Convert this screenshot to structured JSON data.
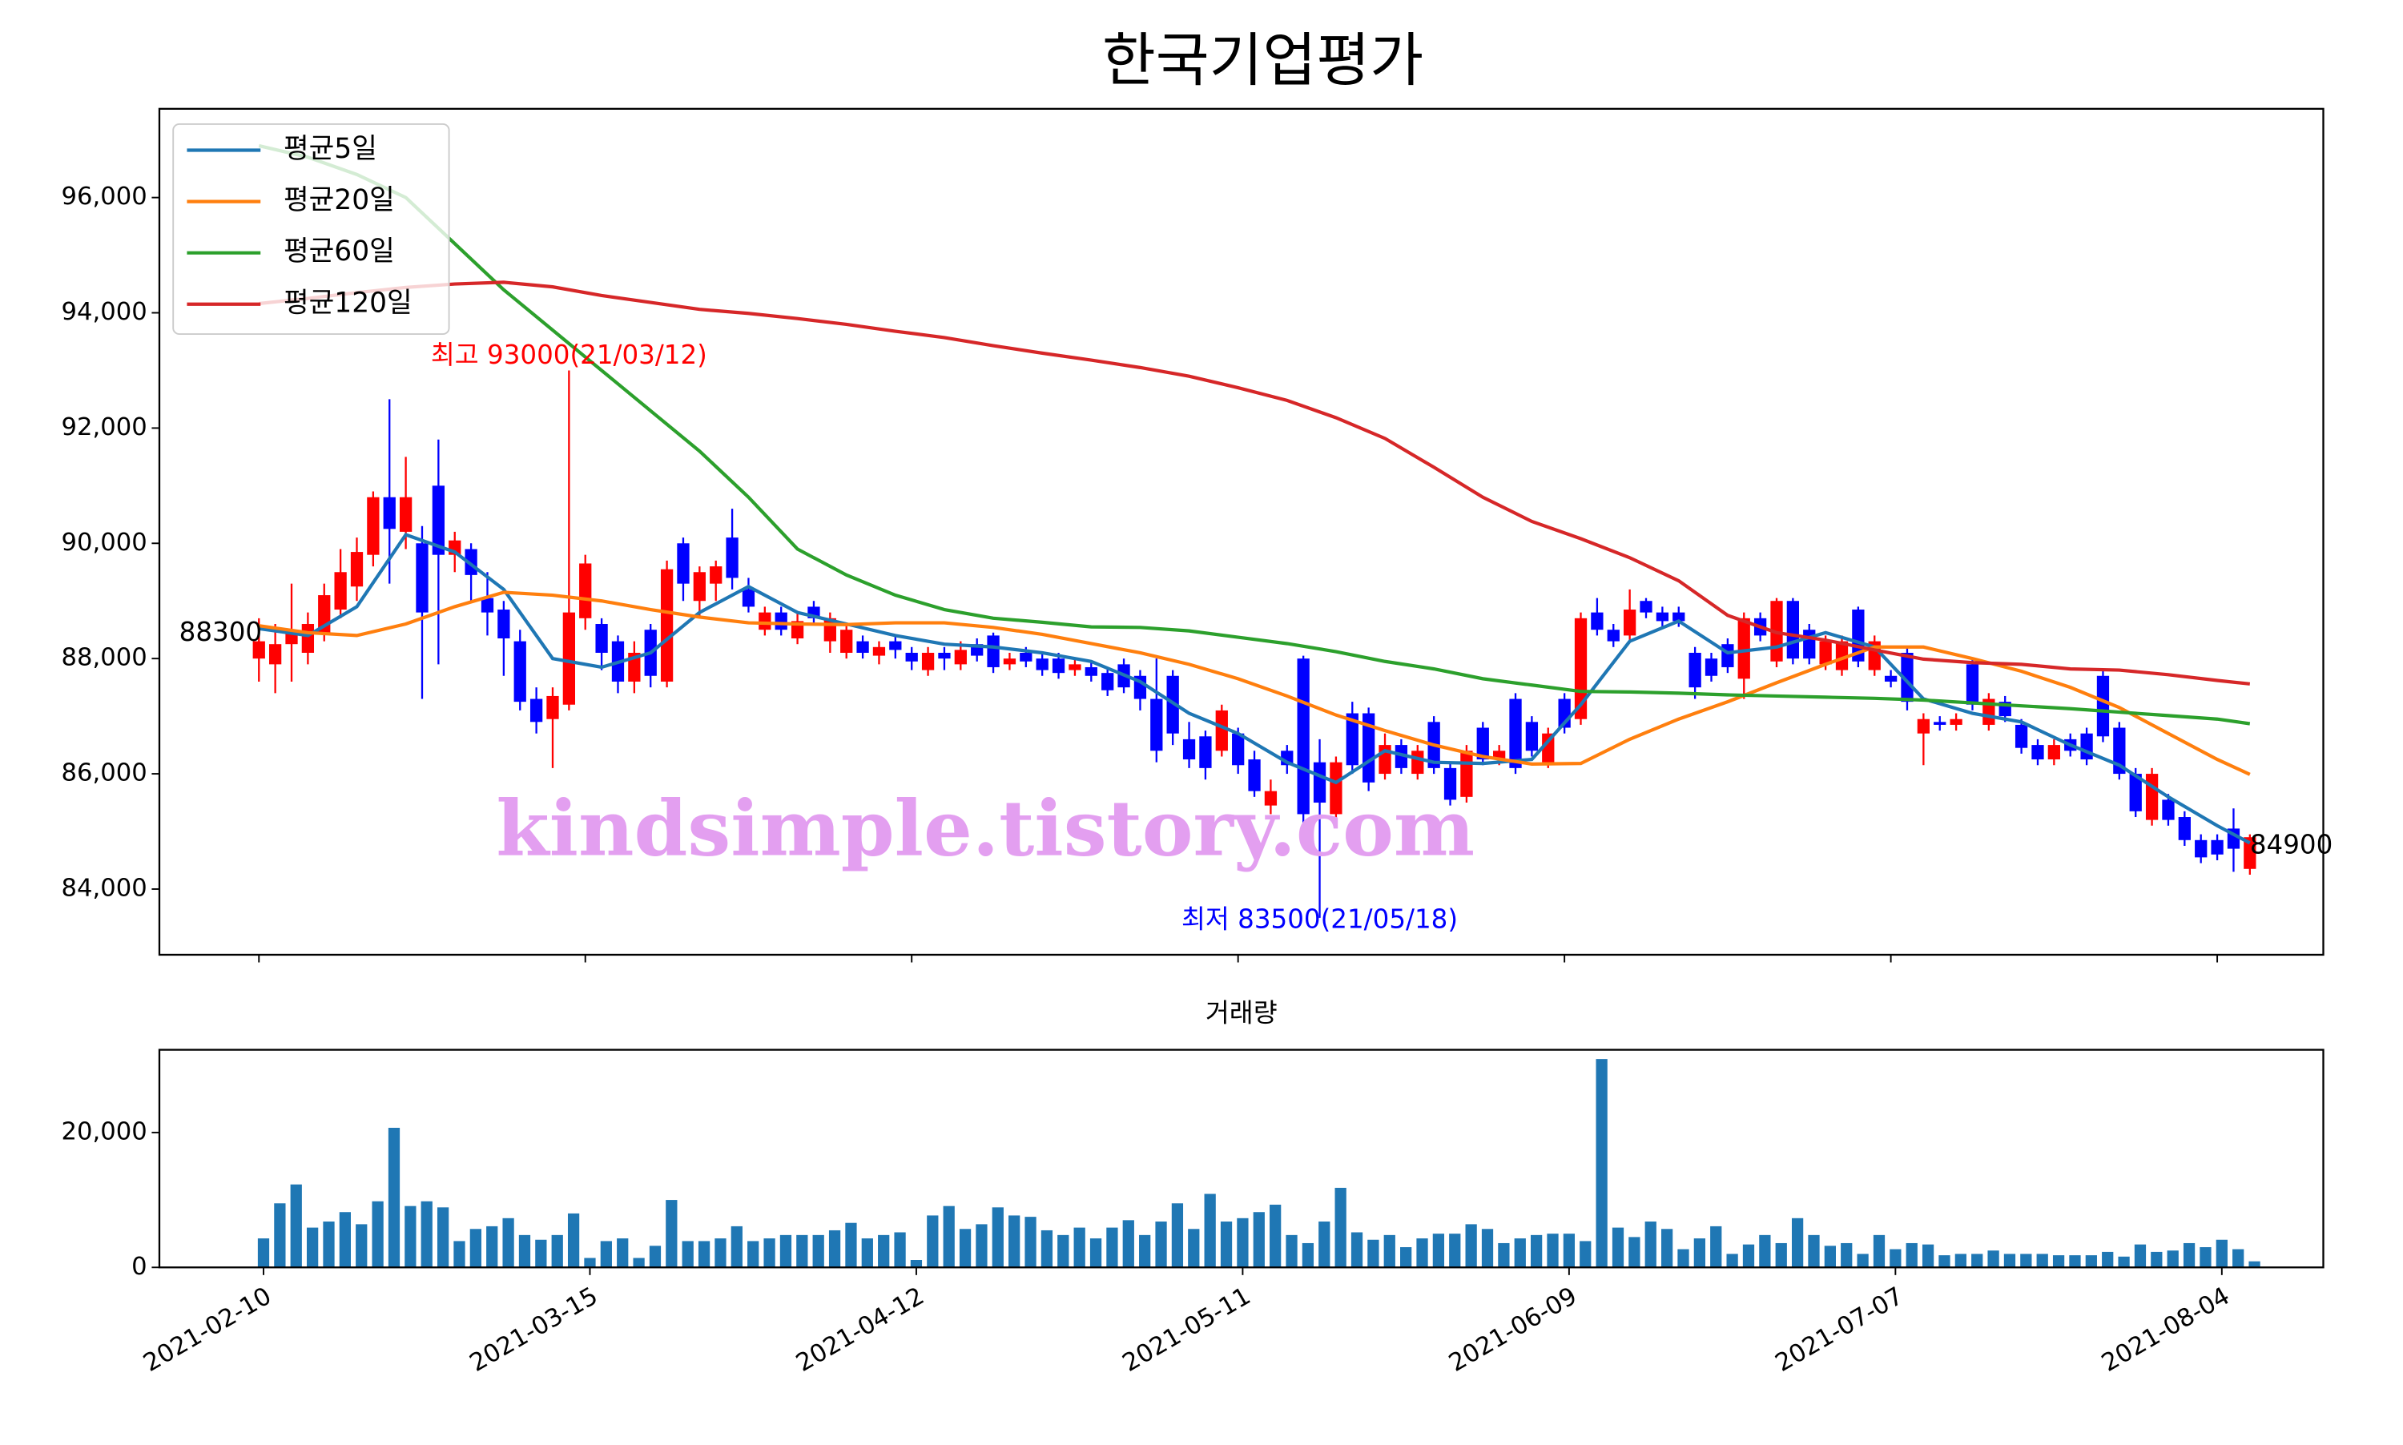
{
  "chart_data": [
    {
      "type": "candlestick",
      "title": "한국기업평가",
      "open": [
        88000,
        87900,
        88250,
        88100,
        88450,
        88850,
        89250,
        89800,
        90800,
        90200,
        90000,
        91000,
        89800,
        89900,
        89050,
        88850,
        88300,
        87300,
        86950,
        87200,
        88700,
        88600,
        88300,
        87600,
        88500,
        87600,
        90000,
        89000,
        89300,
        90100,
        89200,
        88500,
        88800,
        88350,
        88900,
        88300,
        88100,
        88300,
        88050,
        88300,
        88100,
        87800,
        88100,
        87900,
        88250,
        88400,
        87900,
        88100,
        88000,
        88000,
        87800,
        87850,
        87750,
        87900,
        87700,
        87300,
        87700,
        86600,
        86650,
        86400,
        86700,
        86250,
        85450,
        86400,
        88000,
        86200,
        85300,
        87050,
        87050,
        86000,
        86500,
        86000,
        86900,
        86100,
        85600,
        86800,
        86250,
        87300,
        86900,
        86200,
        87300,
        86950,
        88800,
        88500,
        88400,
        89000,
        88800,
        88800,
        88100,
        88000,
        88250,
        87650,
        88700,
        87950,
        89000,
        88500,
        87900,
        87800,
        88850,
        87800,
        87700,
        88100,
        86700,
        86900,
        86850,
        87900,
        86850,
        87250,
        86850,
        86500,
        86250,
        86600,
        86700,
        87700,
        86800,
        86000,
        85200,
        85550,
        85250,
        84850,
        84850,
        85050,
        84350
      ],
      "high": [
        88700,
        88600,
        89300,
        88800,
        89300,
        89900,
        90100,
        90900,
        92500,
        91500,
        90300,
        91800,
        90200,
        90000,
        89500,
        89000,
        88500,
        87500,
        87500,
        93000,
        89800,
        88700,
        88400,
        88300,
        88600,
        89700,
        90100,
        89600,
        89700,
        90600,
        89400,
        88900,
        88900,
        88800,
        89000,
        88800,
        88600,
        88400,
        88300,
        88400,
        88200,
        88200,
        88200,
        88300,
        88350,
        88450,
        88100,
        88200,
        88100,
        88100,
        88000,
        87950,
        87850,
        88000,
        87800,
        88000,
        87800,
        86900,
        86750,
        87200,
        86800,
        86400,
        85900,
        86500,
        88050,
        86600,
        86300,
        87250,
        87150,
        86700,
        86600,
        86500,
        87000,
        86200,
        86500,
        86900,
        86500,
        87400,
        87000,
        86800,
        87400,
        88800,
        89050,
        88600,
        89200,
        89050,
        88900,
        88900,
        88200,
        88100,
        88350,
        88800,
        88800,
        89050,
        89050,
        88600,
        88400,
        88400,
        88900,
        88400,
        87800,
        88200,
        87050,
        87000,
        87050,
        88000,
        87400,
        87350,
        86950,
        86600,
        86600,
        86700,
        86800,
        87800,
        86900,
        86100,
        86100,
        85650,
        85350,
        84950,
        84950,
        85400,
        84950
      ],
      "low": [
        87600,
        87400,
        87600,
        87900,
        88300,
        88700,
        89000,
        89600,
        89300,
        89900,
        87300,
        87900,
        89500,
        89000,
        88400,
        87700,
        87100,
        86700,
        86100,
        87100,
        88500,
        87800,
        87400,
        87400,
        87500,
        87500,
        89000,
        88700,
        89000,
        89200,
        88800,
        88400,
        88400,
        88250,
        88600,
        88100,
        88000,
        88000,
        87900,
        88000,
        87800,
        87700,
        87800,
        87800,
        87950,
        87750,
        87800,
        87850,
        87700,
        87650,
        87700,
        87600,
        87350,
        87400,
        87100,
        86200,
        86500,
        86100,
        85900,
        86300,
        86000,
        85600,
        85300,
        86000,
        85000,
        83500,
        85100,
        86000,
        85700,
        85900,
        86000,
        85900,
        86000,
        85450,
        85500,
        86150,
        86150,
        86000,
        86300,
        86100,
        86700,
        86850,
        88400,
        88200,
        88300,
        88700,
        88550,
        88550,
        87300,
        87600,
        87750,
        87300,
        88300,
        87850,
        87900,
        87900,
        87800,
        87700,
        87850,
        87700,
        87500,
        87100,
        86150,
        86750,
        86750,
        87100,
        86750,
        86900,
        86350,
        86150,
        86150,
        86300,
        86150,
        86550,
        85900,
        85250,
        85100,
        85100,
        84750,
        84450,
        84500,
        84300,
        84250
      ],
      "close": [
        88300,
        88250,
        88500,
        88600,
        89100,
        89500,
        89850,
        90800,
        90250,
        90800,
        88800,
        89800,
        90050,
        89450,
        88800,
        88350,
        87250,
        86900,
        87350,
        88800,
        89650,
        88100,
        87600,
        88100,
        87700,
        89550,
        89300,
        89500,
        89600,
        89400,
        88900,
        88800,
        88500,
        88650,
        88700,
        88700,
        88500,
        88100,
        88200,
        88150,
        87950,
        88100,
        88000,
        88150,
        88050,
        87850,
        88000,
        87950,
        87800,
        87750,
        87900,
        87700,
        87450,
        87500,
        87300,
        86400,
        86700,
        86250,
        86100,
        87100,
        86150,
        85700,
        85700,
        86150,
        85300,
        85500,
        86200,
        86150,
        85850,
        86500,
        86100,
        86400,
        86100,
        85550,
        86400,
        86250,
        86400,
        86100,
        86400,
        86700,
        86800,
        88700,
        88500,
        88300,
        88850,
        88800,
        88650,
        88650,
        87500,
        87700,
        87850,
        88700,
        88400,
        89000,
        88000,
        88000,
        88300,
        88300,
        87950,
        88300,
        87600,
        87250,
        86950,
        86850,
        86950,
        87200,
        87300,
        87000,
        86450,
        86250,
        86500,
        86400,
        86250,
        86650,
        86000,
        85350,
        86000,
        85200,
        84850,
        84550,
        84600,
        84700,
        84900
      ],
      "up_color": "#ff0000",
      "down_color": "#0000ff",
      "series": [
        {
          "name": "평균5일",
          "color": "#1f77b4",
          "x": [
            0,
            3,
            6,
            9,
            12,
            15,
            18,
            21,
            24,
            27,
            30,
            33,
            36,
            39,
            42,
            45,
            48,
            51,
            54,
            57,
            60,
            63,
            66,
            69,
            72,
            75,
            78,
            81,
            84,
            87,
            90,
            93,
            96,
            99,
            102,
            105,
            108,
            111,
            114,
            117,
            120,
            122
          ],
          "values": [
            88520,
            88400,
            88900,
            90150,
            89850,
            89200,
            88000,
            87850,
            88100,
            88800,
            89250,
            88800,
            88600,
            88400,
            88250,
            88200,
            88100,
            87950,
            87600,
            87050,
            86700,
            86200,
            85850,
            86400,
            86200,
            86180,
            86250,
            87200,
            88300,
            88650,
            88100,
            88200,
            88450,
            88200,
            87300,
            87050,
            86900,
            86500,
            86150,
            85600,
            85100,
            84800
          ]
        },
        {
          "name": "평균20일",
          "color": "#ff7f0e",
          "x": [
            0,
            3,
            6,
            9,
            12,
            15,
            18,
            21,
            24,
            27,
            30,
            33,
            36,
            39,
            42,
            45,
            48,
            51,
            54,
            57,
            60,
            63,
            66,
            69,
            72,
            75,
            78,
            81,
            84,
            87,
            90,
            93,
            96,
            99,
            102,
            105,
            108,
            111,
            114,
            117,
            120,
            122
          ],
          "values": [
            88570,
            88450,
            88400,
            88600,
            88900,
            89150,
            89100,
            89000,
            88850,
            88720,
            88620,
            88600,
            88590,
            88620,
            88620,
            88540,
            88420,
            88260,
            88100,
            87900,
            87650,
            87350,
            87020,
            86750,
            86500,
            86300,
            86170,
            86180,
            86600,
            86950,
            87250,
            87580,
            87900,
            88200,
            88200,
            88000,
            87780,
            87500,
            87150,
            86700,
            86250,
            85990
          ]
        },
        {
          "name": "평균60일",
          "color": "#2ca02c",
          "x": [
            0,
            3,
            6,
            9,
            12,
            15,
            18,
            21,
            24,
            27,
            30,
            33,
            36,
            39,
            42,
            45,
            48,
            51,
            54,
            57,
            60,
            63,
            66,
            69,
            72,
            75,
            78,
            81,
            84,
            87,
            90,
            93,
            96,
            99,
            102,
            105,
            108,
            111,
            114,
            117,
            120,
            122
          ],
          "values": [
            96900,
            96700,
            96400,
            96000,
            95200,
            94400,
            93700,
            93000,
            92300,
            91600,
            90800,
            89900,
            89450,
            89100,
            88850,
            88700,
            88630,
            88550,
            88540,
            88480,
            88370,
            88260,
            88120,
            87950,
            87820,
            87650,
            87540,
            87430,
            87420,
            87400,
            87370,
            87350,
            87330,
            87310,
            87280,
            87230,
            87180,
            87130,
            87070,
            87010,
            86950,
            86870
          ]
        },
        {
          "name": "평균120일",
          "color": "#d62728",
          "x": [
            0,
            3,
            6,
            9,
            12,
            15,
            18,
            21,
            24,
            27,
            30,
            33,
            36,
            39,
            42,
            45,
            48,
            51,
            54,
            57,
            60,
            63,
            66,
            69,
            72,
            75,
            78,
            81,
            84,
            87,
            90,
            93,
            96,
            99,
            102,
            105,
            108,
            111,
            114,
            117,
            120,
            122
          ],
          "values": [
            94160,
            94250,
            94350,
            94440,
            94500,
            94530,
            94450,
            94300,
            94180,
            94060,
            93990,
            93900,
            93800,
            93680,
            93570,
            93430,
            93300,
            93180,
            93050,
            92900,
            92700,
            92480,
            92180,
            91820,
            91320,
            90800,
            90380,
            90080,
            89750,
            89350,
            88750,
            88450,
            88320,
            88150,
            87990,
            87930,
            87900,
            87820,
            87800,
            87720,
            87620,
            87560
          ]
        }
      ],
      "legend": "upper left",
      "xlim": [
        -6.1,
        126.5
      ],
      "ylim": [
        82860,
        97540
      ],
      "yticks": [
        {
          "value": 84000,
          "label": "84,000"
        },
        {
          "value": 86000,
          "label": "86,000"
        },
        {
          "value": 88000,
          "label": "88,000"
        },
        {
          "value": 90000,
          "label": "90,000"
        },
        {
          "value": 92000,
          "label": "92,000"
        },
        {
          "value": 94000,
          "label": "94,000"
        },
        {
          "value": 96000,
          "label": "96,000"
        }
      ],
      "annotations": [
        {
          "text": "최고 93000(21/03/12)",
          "x": 19,
          "y": 93000,
          "color": "#ff0000"
        },
        {
          "text": "최저 83500(21/05/18)",
          "x": 65,
          "y": 83500,
          "color": "#0000ff"
        }
      ],
      "price_labels": [
        {
          "x": 0,
          "value": 88300
        },
        {
          "x": 122,
          "value": 84900
        }
      ],
      "watermark": "kindsimple.tistory.com",
      "watermark_color": "#e39ff0"
    },
    {
      "type": "bar",
      "title": "거래량",
      "categories": [
        "2021-02-10",
        null,
        null,
        null,
        null,
        null,
        null,
        null,
        null,
        null,
        null,
        null,
        null,
        null,
        null,
        null,
        null,
        null,
        null,
        null,
        "2021-03-15",
        null,
        null,
        null,
        null,
        null,
        null,
        null,
        null,
        null,
        null,
        null,
        null,
        null,
        null,
        null,
        null,
        null,
        null,
        null,
        "2021-04-12",
        null,
        null,
        null,
        null,
        null,
        null,
        null,
        null,
        null,
        null,
        null,
        null,
        null,
        null,
        null,
        null,
        null,
        null,
        null,
        "2021-05-11",
        null,
        null,
        null,
        null,
        null,
        null,
        null,
        null,
        null,
        null,
        null,
        null,
        null,
        null,
        null,
        null,
        null,
        null,
        null,
        "2021-06-09",
        null,
        null,
        null,
        null,
        null,
        null,
        null,
        null,
        null,
        null,
        null,
        null,
        null,
        null,
        null,
        null,
        null,
        null,
        null,
        "2021-07-07",
        null,
        null,
        null,
        null,
        null,
        null,
        null,
        null,
        null,
        null,
        null,
        null,
        null,
        null,
        null,
        null,
        null,
        null,
        null,
        "2021-08-04",
        null,
        null
      ],
      "values": [
        4300,
        9500,
        12300,
        5900,
        6800,
        8200,
        6400,
        9800,
        20700,
        9100,
        9800,
        8900,
        3900,
        5700,
        6100,
        7300,
        4800,
        4100,
        4800,
        8000,
        1400,
        3900,
        4300,
        1400,
        3200,
        10000,
        3900,
        3900,
        4300,
        6100,
        3900,
        4300,
        4800,
        4800,
        4800,
        5500,
        6600,
        4300,
        4800,
        5200,
        1100,
        7700,
        9100,
        5700,
        6400,
        8900,
        7700,
        7500,
        5500,
        4800,
        5900,
        4300,
        5900,
        7000,
        4800,
        6800,
        9500,
        5700,
        10900,
        6800,
        7300,
        8200,
        9300,
        4800,
        3600,
        6800,
        11800,
        5200,
        4100,
        4800,
        3000,
        4300,
        5000,
        5000,
        6400,
        5700,
        3600,
        4300,
        4800,
        5000,
        5000,
        3900,
        30900,
        5900,
        4500,
        6800,
        5700,
        2700,
        4300,
        6100,
        2000,
        3400,
        4800,
        3600,
        7300,
        4800,
        3200,
        3600,
        2000,
        4800,
        2700,
        3600,
        3400,
        1800,
        2000,
        2000,
        2500,
        2000,
        2000,
        2000,
        1800,
        1800,
        1800,
        2300,
        1600,
        3400,
        2300,
        2500,
        3600,
        3000,
        4100,
        2700,
        900
      ],
      "color": "#1f77b4",
      "xlim": [
        -6.1,
        126.5
      ],
      "ylim": [
        0,
        32270
      ],
      "yticks": [
        0,
        {
          "value": 20000,
          "label": "20,000"
        }
      ]
    }
  ]
}
